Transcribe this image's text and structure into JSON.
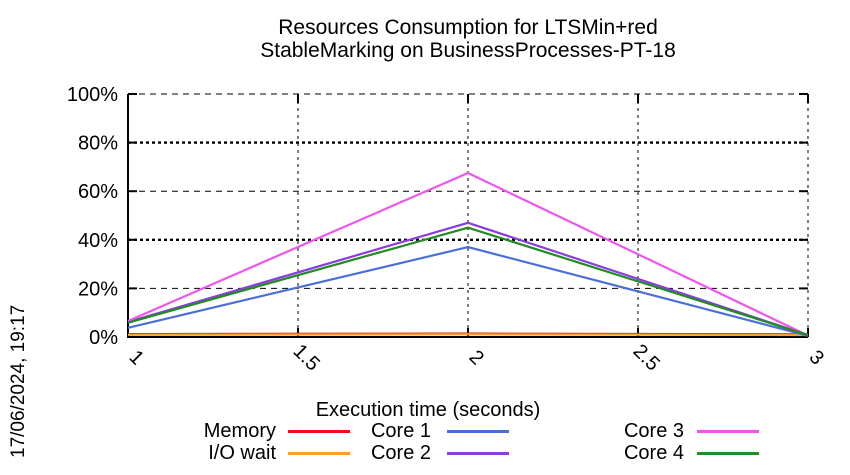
{
  "timestamp": "17/06/2024, 19:17",
  "chart_data": {
    "type": "line",
    "title": "Resources Consumption for LTSMin+red",
    "subtitle": "StableMarking on BusinessProcesses-PT-18",
    "xlabel": "Execution time (seconds)",
    "ylabel": "",
    "xlim": [
      1,
      3
    ],
    "ylim": [
      0,
      100
    ],
    "xticks": [
      1,
      1.5,
      2,
      2.5,
      3
    ],
    "xtick_labels": [
      "1",
      "1.5",
      "2",
      "2.5",
      "3"
    ],
    "yticks": [
      0,
      20,
      40,
      60,
      80,
      100
    ],
    "ytick_labels": [
      "0%",
      "20%",
      "40%",
      "60%",
      "80%",
      "100%"
    ],
    "grid": true,
    "legend_position": "bottom",
    "x": [
      1,
      2,
      3
    ],
    "series": [
      {
        "name": "Memory",
        "color": "#ee1111",
        "values": [
          1.2,
          1.4,
          1.1
        ]
      },
      {
        "name": "I/O wait",
        "color": "#f5a328",
        "values": [
          0.9,
          1.1,
          0.8
        ]
      },
      {
        "name": "Core 1",
        "color": "#4a6fd8",
        "values": [
          3.8,
          37.0,
          0.5
        ]
      },
      {
        "name": "Core 2",
        "color": "#8a3be2",
        "values": [
          6.2,
          47.0,
          0.8
        ]
      },
      {
        "name": "Core 3",
        "color": "#ee55ee",
        "values": [
          6.6,
          67.5,
          0.6
        ]
      },
      {
        "name": "Core 4",
        "color": "#228b22",
        "values": [
          5.9,
          45.0,
          0.8
        ]
      }
    ]
  }
}
